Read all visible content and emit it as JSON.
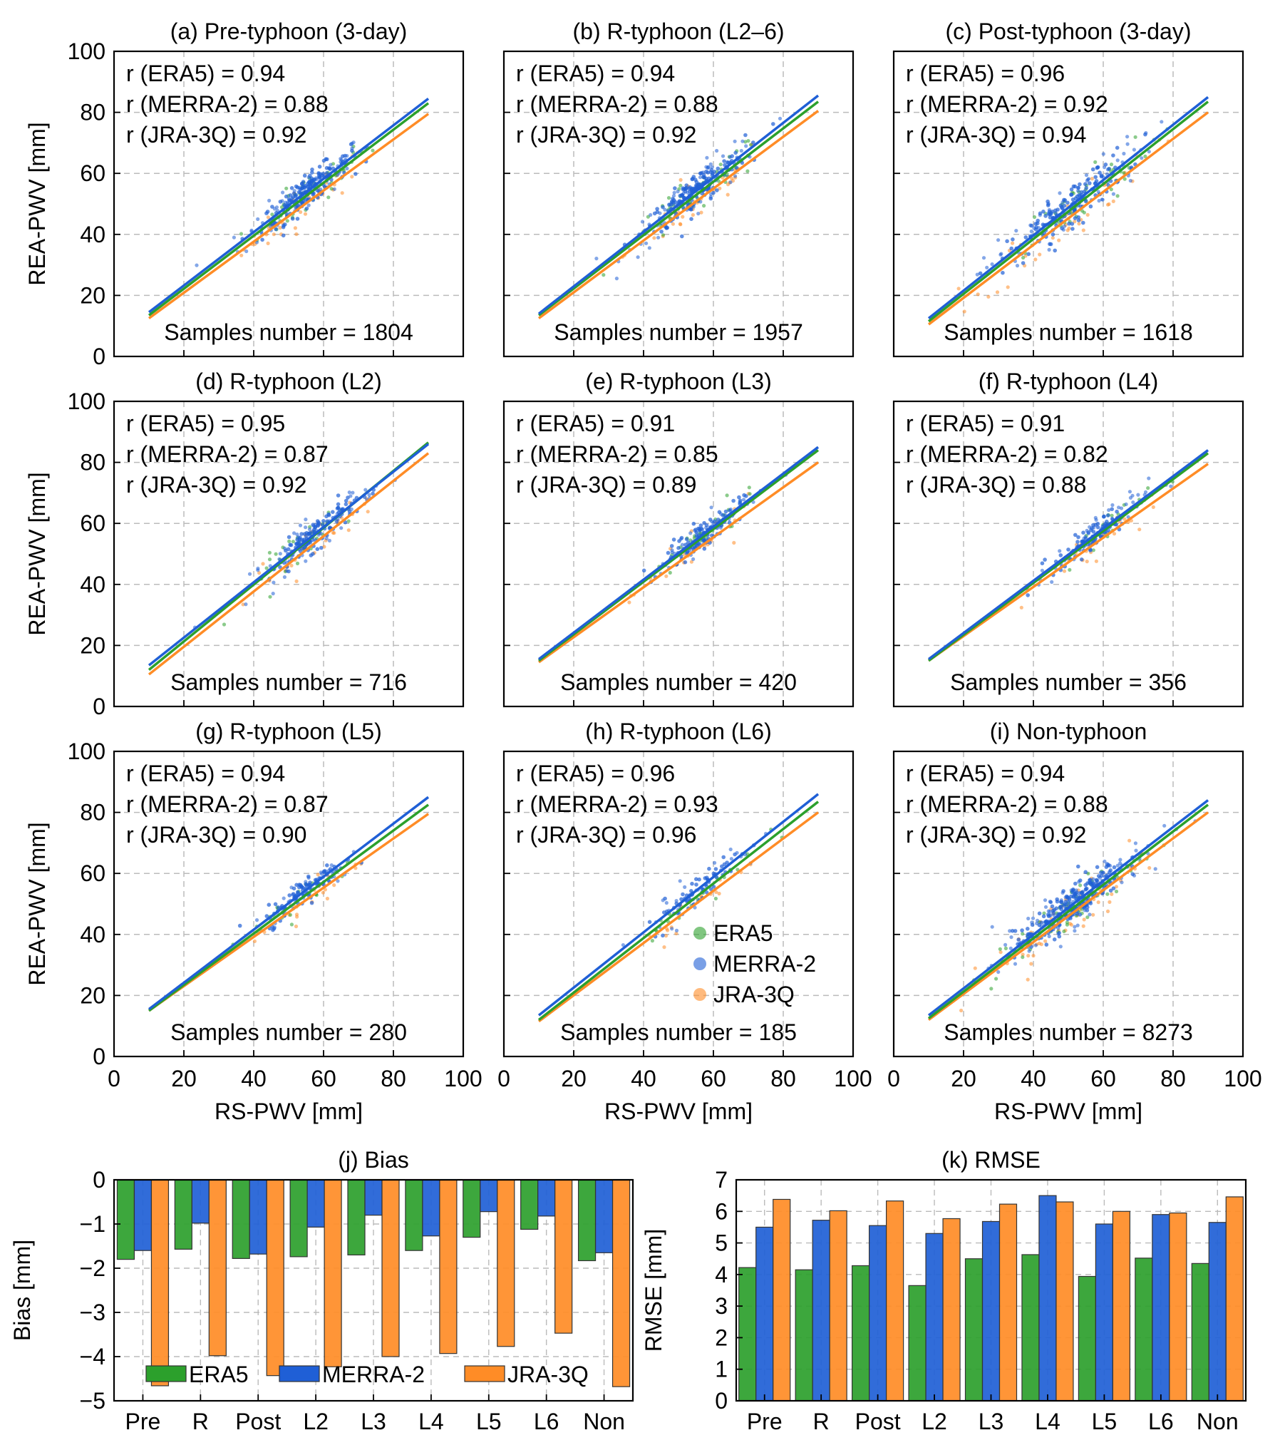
{
  "colors": {
    "era5": "#2ca02c",
    "merra2": "#1f5fd6",
    "jra3q": "#ff8c26",
    "grid": "#bbbbbb"
  },
  "scatter_axes": {
    "xlabel": "RS-PWV [mm]",
    "ylabel": "REA-PWV [mm]",
    "xlim": [
      0,
      100
    ],
    "ylim": [
      0,
      100
    ],
    "ticks": [
      "0",
      "20",
      "40",
      "60",
      "80",
      "100"
    ]
  },
  "legend": {
    "labels": [
      "ERA5",
      "MERRA-2",
      "JRA-3Q"
    ]
  },
  "chart_data": [
    {
      "type": "scatter",
      "title": "(a) Pre-typhoon (3-day)",
      "samples_label": "Samples number = 1804",
      "r_labels": [
        "r (ERA5) = 0.94",
        "r (MERRA-2) = 0.88",
        "r (JRA-3Q) = 0.92"
      ],
      "fit_lines": {
        "ERA5": [
          [
            10,
            13.5
          ],
          [
            90,
            83
          ]
        ],
        "MERRA-2": [
          [
            10,
            14.5
          ],
          [
            90,
            84.5
          ]
        ],
        "JRA-3Q": [
          [
            10,
            12.5
          ],
          [
            90,
            79.5
          ]
        ]
      },
      "cloud": {
        "center": [
          55,
          55
        ],
        "spread": 9,
        "n": 180
      }
    },
    {
      "type": "scatter",
      "title": "(b) R-typhoon (L2–6)",
      "samples_label": "Samples number = 1957",
      "r_labels": [
        "r (ERA5) = 0.94",
        "r (MERRA-2) = 0.88",
        "r (JRA-3Q) = 0.92"
      ],
      "fit_lines": {
        "ERA5": [
          [
            10,
            13.5
          ],
          [
            90,
            83.5
          ]
        ],
        "MERRA-2": [
          [
            10,
            14
          ],
          [
            90,
            85.5
          ]
        ],
        "JRA-3Q": [
          [
            10,
            12.5
          ],
          [
            90,
            80.5
          ]
        ]
      },
      "cloud": {
        "center": [
          55,
          55
        ],
        "spread": 10,
        "n": 180
      }
    },
    {
      "type": "scatter",
      "title": "(c) Post-typhoon (3-day)",
      "samples_label": "Samples number = 1618",
      "r_labels": [
        "r (ERA5) = 0.96",
        "r (MERRA-2) = 0.92",
        "r (JRA-3Q) = 0.94"
      ],
      "fit_lines": {
        "ERA5": [
          [
            10,
            11.5
          ],
          [
            90,
            83.5
          ]
        ],
        "MERRA-2": [
          [
            10,
            12.5
          ],
          [
            90,
            85
          ]
        ],
        "JRA-3Q": [
          [
            10,
            10.5
          ],
          [
            90,
            80
          ]
        ]
      },
      "cloud": {
        "center": [
          50,
          50
        ],
        "spread": 12,
        "n": 170
      }
    },
    {
      "type": "scatter",
      "title": "(d) R-typhoon (L2)",
      "samples_label": "Samples number = 716",
      "r_labels": [
        "r (ERA5) = 0.95",
        "r (MERRA-2) = 0.87",
        "r (JRA-3Q) = 0.92"
      ],
      "fit_lines": {
        "ERA5": [
          [
            10,
            12
          ],
          [
            90,
            86.5
          ]
        ],
        "MERRA-2": [
          [
            10,
            13.5
          ],
          [
            90,
            86
          ]
        ],
        "JRA-3Q": [
          [
            10,
            10.5
          ],
          [
            90,
            83
          ]
        ]
      },
      "cloud": {
        "center": [
          57,
          56
        ],
        "spread": 9,
        "n": 130
      }
    },
    {
      "type": "scatter",
      "title": "(e) R-typhoon (L3)",
      "samples_label": "Samples number = 420",
      "r_labels": [
        "r (ERA5) = 0.91",
        "r (MERRA-2) = 0.85",
        "r (JRA-3Q) = 0.89"
      ],
      "fit_lines": {
        "ERA5": [
          [
            10,
            15
          ],
          [
            90,
            84
          ]
        ],
        "MERRA-2": [
          [
            10,
            15.5
          ],
          [
            90,
            85
          ]
        ],
        "JRA-3Q": [
          [
            10,
            14.5
          ],
          [
            90,
            80
          ]
        ]
      },
      "cloud": {
        "center": [
          57,
          55
        ],
        "spread": 8,
        "n": 110
      }
    },
    {
      "type": "scatter",
      "title": "(f) R-typhoon (L4)",
      "samples_label": "Samples number = 356",
      "r_labels": [
        "r (ERA5) = 0.91",
        "r (MERRA-2) = 0.82",
        "r (JRA-3Q) = 0.88"
      ],
      "fit_lines": {
        "ERA5": [
          [
            10,
            15
          ],
          [
            90,
            83
          ]
        ],
        "MERRA-2": [
          [
            10,
            15.5
          ],
          [
            90,
            84
          ]
        ],
        "JRA-3Q": [
          [
            10,
            15
          ],
          [
            90,
            79.5
          ]
        ]
      },
      "cloud": {
        "center": [
          57,
          55
        ],
        "spread": 8,
        "n": 100
      }
    },
    {
      "type": "scatter",
      "title": "(g) R-typhoon (L5)",
      "samples_label": "Samples number = 280",
      "r_labels": [
        "r (ERA5) = 0.94",
        "r (MERRA-2) = 0.87",
        "r (JRA-3Q) = 0.90"
      ],
      "fit_lines": {
        "ERA5": [
          [
            10,
            15
          ],
          [
            90,
            82.5
          ]
        ],
        "MERRA-2": [
          [
            10,
            15.5
          ],
          [
            90,
            85
          ]
        ],
        "JRA-3Q": [
          [
            10,
            15
          ],
          [
            90,
            79.5
          ]
        ]
      },
      "cloud": {
        "center": [
          55,
          54
        ],
        "spread": 8,
        "n": 90
      }
    },
    {
      "type": "scatter",
      "title": "(h) R-typhoon (L6)",
      "samples_label": "Samples number = 185",
      "r_labels": [
        "r (ERA5) = 0.96",
        "r (MERRA-2) = 0.93",
        "r (JRA-3Q) = 0.96"
      ],
      "fit_lines": {
        "ERA5": [
          [
            10,
            12
          ],
          [
            90,
            83.5
          ]
        ],
        "MERRA-2": [
          [
            10,
            13.5
          ],
          [
            90,
            86
          ]
        ],
        "JRA-3Q": [
          [
            10,
            11.5
          ],
          [
            90,
            80
          ]
        ]
      },
      "cloud": {
        "center": [
          55,
          53
        ],
        "spread": 9,
        "n": 70
      }
    },
    {
      "type": "scatter",
      "title": "(i) Non-typhoon",
      "samples_label": "Samples number = 8273",
      "r_labels": [
        "r (ERA5) = 0.94",
        "r (MERRA-2) = 0.88",
        "r (JRA-3Q) = 0.92"
      ],
      "fit_lines": {
        "ERA5": [
          [
            10,
            12.5
          ],
          [
            90,
            82.5
          ]
        ],
        "MERRA-2": [
          [
            10,
            13.5
          ],
          [
            90,
            84
          ]
        ],
        "JRA-3Q": [
          [
            10,
            12
          ],
          [
            90,
            80
          ]
        ]
      },
      "cloud": {
        "center": [
          50,
          50
        ],
        "spread": 11,
        "n": 240
      }
    },
    {
      "type": "bar",
      "title": "(j) Bias",
      "ylabel": "Bias [mm]",
      "ylim": [
        -5,
        0
      ],
      "yticks": [
        "0",
        "−1",
        "−2",
        "−3",
        "−4",
        "−5"
      ],
      "categories": [
        "Pre",
        "R",
        "Post",
        "L2",
        "L3",
        "L4",
        "L5",
        "L6",
        "Non"
      ],
      "series": [
        {
          "name": "ERA5",
          "values": [
            -1.8,
            -1.57,
            -1.78,
            -1.74,
            -1.7,
            -1.6,
            -1.3,
            -1.12,
            -1.83
          ]
        },
        {
          "name": "MERRA-2",
          "values": [
            -1.6,
            -0.98,
            -1.68,
            -1.07,
            -0.8,
            -1.27,
            -0.72,
            -0.82,
            -1.65
          ]
        },
        {
          "name": "JRA-3Q",
          "values": [
            -4.66,
            -3.98,
            -4.43,
            -4.23,
            -4.0,
            -3.93,
            -3.77,
            -3.47,
            -4.68
          ]
        }
      ]
    },
    {
      "type": "bar",
      "title": "(k) RMSE",
      "ylabel": "RMSE [mm]",
      "ylim": [
        0,
        7
      ],
      "yticks": [
        "0",
        "1",
        "2",
        "3",
        "4",
        "5",
        "6",
        "7"
      ],
      "categories": [
        "Pre",
        "R",
        "Post",
        "L2",
        "L3",
        "L4",
        "L5",
        "L6",
        "Non"
      ],
      "series": [
        {
          "name": "ERA5",
          "values": [
            4.22,
            4.15,
            4.28,
            3.65,
            4.5,
            4.63,
            3.94,
            4.52,
            4.35
          ]
        },
        {
          "name": "MERRA-2",
          "values": [
            5.5,
            5.72,
            5.55,
            5.3,
            5.68,
            6.5,
            5.6,
            5.9,
            5.65
          ]
        },
        {
          "name": "JRA-3Q",
          "values": [
            6.38,
            6.02,
            6.33,
            5.77,
            6.23,
            6.3,
            6.0,
            5.95,
            6.46
          ]
        }
      ]
    }
  ]
}
